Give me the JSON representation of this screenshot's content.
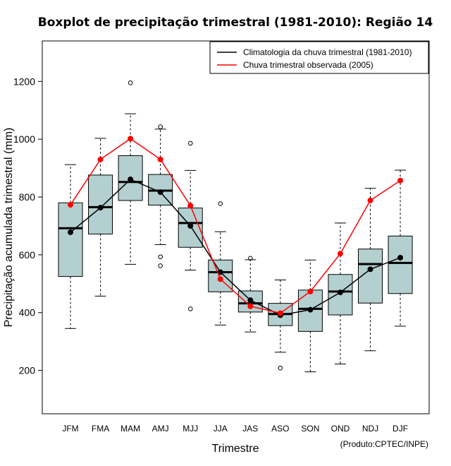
{
  "chart_data": {
    "type": "boxplot",
    "title": "Boxplot de precipitação trimestral (1981-2010): Região 14",
    "xlabel": "Trimestre",
    "ylabel": "Precipitação acumulada trimestral (mm)",
    "ylim": [
      50,
      1340
    ],
    "yticks": [
      200,
      400,
      600,
      800,
      1000,
      1200
    ],
    "categories": [
      "JFM",
      "FMA",
      "MAM",
      "AMJ",
      "MJJ",
      "JJA",
      "JAS",
      "ASO",
      "SON",
      "OND",
      "NDJ",
      "DJF"
    ],
    "boxes": [
      {
        "whisker_low": 345,
        "q1": 525,
        "median": 692,
        "q3": 780,
        "whisker_high": 912,
        "outliers": []
      },
      {
        "whisker_low": 457,
        "q1": 672,
        "median": 765,
        "q3": 876,
        "whisker_high": 1003,
        "outliers": []
      },
      {
        "whisker_low": 567,
        "q1": 788,
        "median": 852,
        "q3": 943,
        "whisker_high": 1088,
        "outliers": [
          1195
        ]
      },
      {
        "whisker_low": 635,
        "q1": 772,
        "median": 822,
        "q3": 878,
        "whisker_high": 1035,
        "outliers": [
          1043,
          593,
          562
        ]
      },
      {
        "whisker_low": 547,
        "q1": 626,
        "median": 710,
        "q3": 762,
        "whisker_high": 892,
        "outliers": [
          986,
          413
        ]
      },
      {
        "whisker_low": 357,
        "q1": 472,
        "median": 540,
        "q3": 582,
        "whisker_high": 680,
        "outliers": [
          777
        ]
      },
      {
        "whisker_low": 333,
        "q1": 402,
        "median": 432,
        "q3": 475,
        "whisker_high": 583,
        "outliers": [
          588
        ]
      },
      {
        "whisker_low": 263,
        "q1": 355,
        "median": 395,
        "q3": 432,
        "whisker_high": 513,
        "outliers": [
          208
        ]
      },
      {
        "whisker_low": 195,
        "q1": 335,
        "median": 413,
        "q3": 478,
        "whisker_high": 582,
        "outliers": []
      },
      {
        "whisker_low": 222,
        "q1": 392,
        "median": 473,
        "q3": 532,
        "whisker_high": 710,
        "outliers": []
      },
      {
        "whisker_low": 268,
        "q1": 433,
        "median": 568,
        "q3": 620,
        "whisker_high": 830,
        "outliers": []
      },
      {
        "whisker_low": 353,
        "q1": 466,
        "median": 572,
        "q3": 665,
        "whisker_high": 893,
        "outliers": []
      }
    ],
    "series": [
      {
        "name": "Climatologia da chuva trimestral (1981-2010)",
        "color": "#000000",
        "values": [
          678,
          763,
          861,
          817,
          700,
          540,
          443,
          391,
          410,
          470,
          550,
          590
        ]
      },
      {
        "name": "Chuva trimestral observada (2005)",
        "color": "#ff0000",
        "values": [
          773,
          930,
          1002,
          930,
          770,
          516,
          422,
          398,
          473,
          604,
          788,
          857
        ]
      }
    ],
    "legend_position": "top-right",
    "box_color": "#b4cfcf",
    "credit": "(Produto:CPTEC/INPE)"
  }
}
